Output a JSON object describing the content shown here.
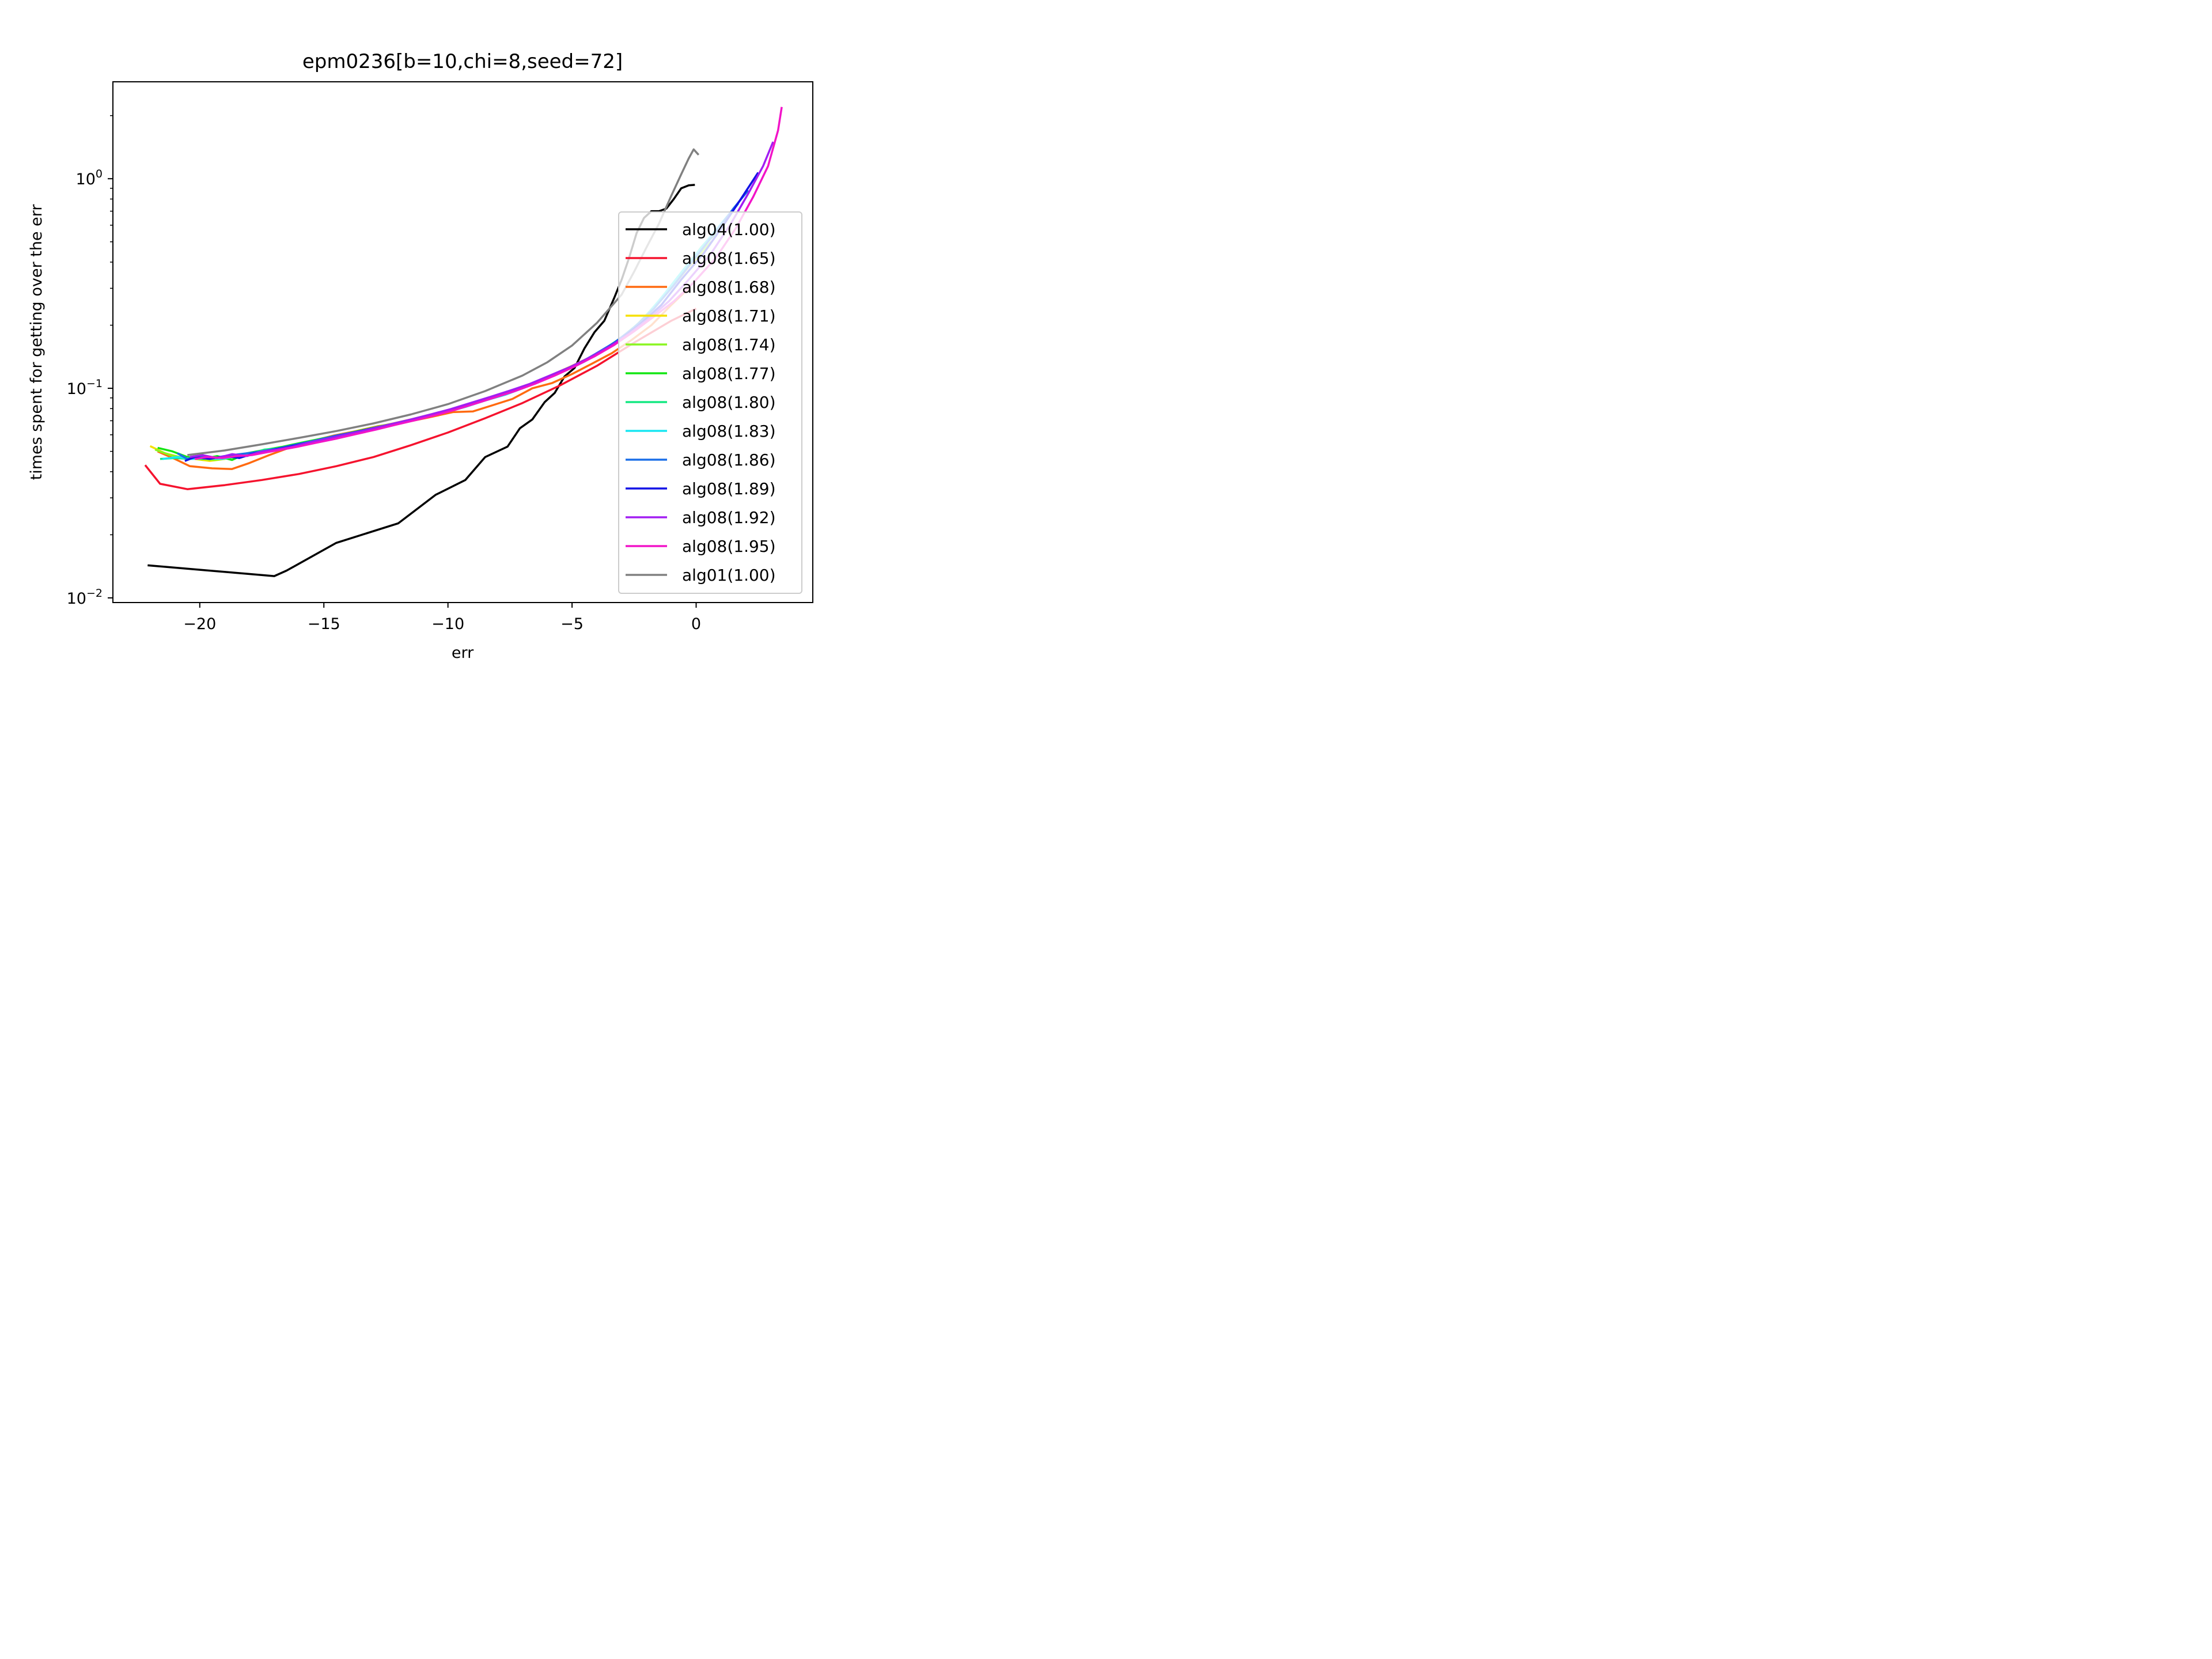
{
  "chart_data": {
    "type": "line",
    "title": "epm0236[b=10,chi=8,seed=72]",
    "xlabel": "err",
    "ylabel": "times spent for getting over the err",
    "xlim": [
      -23.5,
      4.7
    ],
    "ylim": [
      0.0095,
      2.9
    ],
    "yscale": "log",
    "grid": false,
    "legend_position": "right",
    "x_ticks": [
      {
        "value": -20,
        "label": "−20"
      },
      {
        "value": -15,
        "label": "−15"
      },
      {
        "value": -10,
        "label": "−10"
      },
      {
        "value": -5,
        "label": "−5"
      },
      {
        "value": 0,
        "label": "0"
      }
    ],
    "y_ticks": [
      {
        "value": 0.01,
        "base": "10",
        "exp": "−2"
      },
      {
        "value": 0.1,
        "base": "10",
        "exp": "−1"
      },
      {
        "value": 1,
        "base": "10",
        "exp": "0"
      }
    ],
    "series": [
      {
        "name": "alg04(1.00)",
        "color": "#000000",
        "x": [
          -22.1,
          -17,
          -16.5,
          -14.5,
          -12,
          -10.5,
          -9.3,
          -8.5,
          -7.6,
          -7.1,
          -6.6,
          -6.1,
          -5.7,
          -5.3,
          -4.9,
          -4.5,
          -4.1,
          -3.7,
          -3.3,
          -3,
          -2.7,
          -2.4,
          -2.1,
          -1.8,
          -1.5,
          -1.2,
          -0.9,
          -0.6,
          -0.3,
          -0.05
        ],
        "y": [
          0.0143,
          0.0127,
          0.0135,
          0.0183,
          0.0227,
          0.031,
          0.0365,
          0.047,
          0.0527,
          0.0645,
          0.071,
          0.086,
          0.095,
          0.114,
          0.125,
          0.155,
          0.185,
          0.21,
          0.27,
          0.33,
          0.42,
          0.55,
          0.65,
          0.7,
          0.7,
          0.72,
          0.8,
          0.9,
          0.93,
          0.935
        ]
      },
      {
        "name": "alg08(1.65)",
        "color": "#f5132e",
        "x": [
          -22.2,
          -21.6,
          -20.5,
          -19,
          -17.5,
          -16,
          -14.5,
          -13,
          -11.5,
          -10,
          -8.5,
          -7,
          -5.5,
          -4,
          -2.5,
          -1,
          0
        ],
        "y": [
          0.043,
          0.035,
          0.033,
          0.0345,
          0.0365,
          0.039,
          0.0425,
          0.047,
          0.0535,
          0.0615,
          0.072,
          0.085,
          0.103,
          0.128,
          0.165,
          0.21,
          0.24
        ]
      },
      {
        "name": "alg08(1.68)",
        "color": "#ff6a10",
        "x": [
          -21.7,
          -21,
          -20.4,
          -19.5,
          -18.7,
          -18,
          -17.2,
          -16.4,
          -15.5,
          -14.6,
          -13.7,
          -12.8,
          -11.8,
          -10.8,
          -9.8,
          -9,
          -8.2,
          -7.4,
          -6.6,
          -5.8,
          -5,
          -4.2,
          -3.4,
          -2.6,
          -1.8,
          -1,
          -0.3
        ],
        "y": [
          0.05,
          0.046,
          0.0425,
          0.0415,
          0.0412,
          0.044,
          0.048,
          0.052,
          0.056,
          0.0595,
          0.0625,
          0.066,
          0.0685,
          0.0725,
          0.077,
          0.0775,
          0.083,
          0.089,
          0.1,
          0.106,
          0.117,
          0.131,
          0.147,
          0.17,
          0.2,
          0.25,
          0.3
        ]
      },
      {
        "name": "alg08(1.71)",
        "color": "#f5e000",
        "x": [
          -22,
          -21.4,
          -20.8,
          -20.2,
          -19.6,
          -19,
          -18.4,
          -17.8,
          -17,
          -16.2,
          -15.4,
          -14.6,
          -13.8,
          -13,
          -12.2,
          -11.4,
          -10.6,
          -9.8,
          -9,
          -8.2,
          -7.4,
          -6.6,
          -5.8,
          -5,
          -4.2,
          -3.4,
          -2.6,
          -1.8,
          -1,
          -0.3,
          0.4
        ],
        "y": [
          0.053,
          0.049,
          0.047,
          0.046,
          0.045,
          0.046,
          0.048,
          0.0495,
          0.0515,
          0.054,
          0.0565,
          0.059,
          0.062,
          0.065,
          0.068,
          0.0715,
          0.0755,
          0.08,
          0.085,
          0.091,
          0.098,
          0.106,
          0.116,
          0.128,
          0.142,
          0.16,
          0.19,
          0.235,
          0.3,
          0.38,
          0.46
        ]
      },
      {
        "name": "alg08(1.74)",
        "color": "#8af520",
        "x": [
          -21.8,
          -21.2,
          -20.6,
          -20,
          -19.4,
          -18.8,
          -18.2,
          -17.6,
          -16.8,
          -16,
          -15.2,
          -14.4,
          -13.6,
          -12.8,
          -12,
          -11.2,
          -10.4,
          -9.6,
          -8.8,
          -8,
          -7.2,
          -6.4,
          -5.6,
          -4.8,
          -4,
          -3.2,
          -2.4,
          -1.6,
          -0.8,
          0,
          0.6
        ],
        "y": [
          0.051,
          0.048,
          0.0465,
          0.046,
          0.0455,
          0.0465,
          0.048,
          0.05,
          0.052,
          0.0545,
          0.057,
          0.0595,
          0.0625,
          0.0655,
          0.0685,
          0.072,
          0.076,
          0.0805,
          0.0855,
          0.0915,
          0.0985,
          0.107,
          0.117,
          0.129,
          0.145,
          0.165,
          0.2,
          0.25,
          0.33,
          0.42,
          0.5
        ]
      },
      {
        "name": "alg08(1.77)",
        "color": "#12e512",
        "x": [
          -21.7,
          -21.1,
          -20.5,
          -19.9,
          -19.3,
          -18.7,
          -18.1,
          -17.5,
          -16.7,
          -15.9,
          -15.1,
          -14.3,
          -13.5,
          -12.7,
          -11.9,
          -11.1,
          -10.3,
          -9.5,
          -8.7,
          -7.9,
          -7.1,
          -6.3,
          -5.5,
          -4.7,
          -3.9,
          -3.1,
          -2.3,
          -1.5,
          -0.7,
          0.1,
          0.8
        ],
        "y": [
          0.052,
          0.05,
          0.047,
          0.046,
          0.0475,
          0.0455,
          0.049,
          0.0505,
          0.0525,
          0.055,
          0.0575,
          0.06,
          0.063,
          0.066,
          0.069,
          0.0725,
          0.0765,
          0.081,
          0.086,
          0.092,
          0.1,
          0.108,
          0.118,
          0.131,
          0.149,
          0.17,
          0.205,
          0.26,
          0.34,
          0.45,
          0.55
        ]
      },
      {
        "name": "alg08(1.80)",
        "color": "#14e882",
        "x": [
          -21.6,
          -21,
          -20.4,
          -19.8,
          -19.2,
          -18.6,
          -18,
          -17.4,
          -16.6,
          -15.8,
          -15,
          -14.2,
          -13.4,
          -12.6,
          -11.8,
          -11,
          -10.2,
          -9.4,
          -8.6,
          -7.8,
          -7,
          -6.2,
          -5.4,
          -4.6,
          -3.8,
          -3,
          -2.2,
          -1.4,
          -0.6,
          0.2,
          1
        ],
        "y": [
          0.046,
          0.0465,
          0.046,
          0.0475,
          0.0465,
          0.047,
          0.0485,
          0.051,
          0.052,
          0.0545,
          0.057,
          0.06,
          0.0625,
          0.065,
          0.069,
          0.0725,
          0.0765,
          0.081,
          0.087,
          0.0925,
          0.1,
          0.109,
          0.12,
          0.133,
          0.151,
          0.175,
          0.21,
          0.27,
          0.35,
          0.47,
          0.6
        ]
      },
      {
        "name": "alg08(1.83)",
        "color": "#18e6f2",
        "x": [
          -21.5,
          -20.9,
          -20.3,
          -19.7,
          -19.1,
          -18.5,
          -17.9,
          -17.3,
          -16.5,
          -15.7,
          -14.9,
          -14.1,
          -13.3,
          -12.5,
          -11.7,
          -10.9,
          -10.1,
          -9.3,
          -8.5,
          -7.7,
          -6.9,
          -6.1,
          -5.3,
          -4.5,
          -3.7,
          -2.9,
          -2.1,
          -1.3,
          -0.5,
          0.4,
          1.2,
          1.7
        ],
        "y": [
          0.046,
          0.047,
          0.046,
          0.0465,
          0.046,
          0.0475,
          0.0485,
          0.05,
          0.0525,
          0.055,
          0.0575,
          0.0605,
          0.063,
          0.0655,
          0.0695,
          0.073,
          0.077,
          0.0815,
          0.0875,
          0.093,
          0.101,
          0.11,
          0.121,
          0.134,
          0.153,
          0.178,
          0.215,
          0.28,
          0.37,
          0.5,
          0.65,
          0.76
        ]
      },
      {
        "name": "alg08(1.86)",
        "color": "#1a6ee8",
        "x": [
          -20.9,
          -20.5,
          -19.9,
          -19.3,
          -18.7,
          -18.1,
          -17.5,
          -16.9,
          -16.1,
          -15.3,
          -14.5,
          -13.7,
          -12.9,
          -12.1,
          -11.3,
          -10.5,
          -9.7,
          -8.9,
          -8.1,
          -7.3,
          -6.5,
          -5.7,
          -4.9,
          -4.1,
          -3.3,
          -2.5,
          -1.7,
          -0.9,
          -0.1,
          0.8,
          1.5,
          2.1
        ],
        "y": [
          0.049,
          0.046,
          0.0475,
          0.0465,
          0.048,
          0.049,
          0.05,
          0.0515,
          0.054,
          0.0565,
          0.0595,
          0.062,
          0.065,
          0.068,
          0.0715,
          0.0755,
          0.08,
          0.0855,
          0.091,
          0.098,
          0.106,
          0.116,
          0.128,
          0.145,
          0.165,
          0.195,
          0.24,
          0.31,
          0.41,
          0.56,
          0.72,
          0.88
        ]
      },
      {
        "name": "alg08(1.89)",
        "color": "#1212e6",
        "x": [
          -20.6,
          -20.2,
          -19.6,
          -19,
          -18.4,
          -17.8,
          -17.2,
          -16.6,
          -15.8,
          -15,
          -14.2,
          -13.4,
          -12.6,
          -11.8,
          -11,
          -10.2,
          -9.4,
          -8.6,
          -7.8,
          -7,
          -6.2,
          -5.4,
          -4.6,
          -3.8,
          -3,
          -2.2,
          -1.4,
          -0.6,
          0.3,
          1.1,
          1.8,
          2.5
        ],
        "y": [
          0.045,
          0.047,
          0.046,
          0.0475,
          0.0465,
          0.049,
          0.0505,
          0.052,
          0.0545,
          0.057,
          0.06,
          0.063,
          0.066,
          0.0695,
          0.073,
          0.077,
          0.0815,
          0.087,
          0.0935,
          0.1,
          0.11,
          0.12,
          0.133,
          0.15,
          0.173,
          0.205,
          0.25,
          0.33,
          0.44,
          0.6,
          0.8,
          1.07
        ]
      },
      {
        "name": "alg08(1.92)",
        "color": "#a21ef2",
        "x": [
          -20.4,
          -19.9,
          -19.3,
          -18.7,
          -18.1,
          -17.5,
          -16.9,
          -16.3,
          -15.5,
          -14.7,
          -13.9,
          -13.1,
          -12.3,
          -11.5,
          -10.7,
          -9.9,
          -9.1,
          -8.3,
          -7.5,
          -6.7,
          -5.9,
          -5.1,
          -4.3,
          -3.5,
          -2.7,
          -1.9,
          -1.1,
          -0.3,
          0.6,
          1.4,
          2.1,
          2.7,
          3.1
        ],
        "y": [
          0.047,
          0.048,
          0.0465,
          0.0485,
          0.0475,
          0.05,
          0.051,
          0.0525,
          0.0555,
          0.058,
          0.061,
          0.064,
          0.0675,
          0.071,
          0.075,
          0.0795,
          0.085,
          0.091,
          0.0975,
          0.105,
          0.115,
          0.126,
          0.14,
          0.158,
          0.182,
          0.215,
          0.26,
          0.33,
          0.44,
          0.61,
          0.85,
          1.15,
          1.5
        ]
      },
      {
        "name": "alg08(1.95)",
        "color": "#f214c8",
        "x": [
          -20.2,
          -19.7,
          -19.1,
          -18.5,
          -17.9,
          -17.3,
          -16.7,
          -16.1,
          -15.3,
          -14.5,
          -13.7,
          -12.9,
          -12.1,
          -11.3,
          -10.5,
          -9.7,
          -8.9,
          -8.1,
          -7.3,
          -6.5,
          -5.7,
          -4.9,
          -4.1,
          -3.3,
          -2.5,
          -1.7,
          -0.9,
          -0.1,
          0.8,
          1.6,
          2.3,
          2.9,
          3.3,
          3.45
        ],
        "y": [
          0.046,
          0.047,
          0.0465,
          0.0475,
          0.048,
          0.0495,
          0.051,
          0.0525,
          0.055,
          0.0575,
          0.0605,
          0.0635,
          0.067,
          0.0705,
          0.0745,
          0.079,
          0.0845,
          0.0905,
          0.097,
          0.105,
          0.115,
          0.127,
          0.142,
          0.161,
          0.187,
          0.22,
          0.26,
          0.32,
          0.42,
          0.58,
          0.82,
          1.15,
          1.7,
          2.2
        ]
      },
      {
        "name": "alg01(1.00)",
        "color": "#808080",
        "x": [
          -20.5,
          -19,
          -17.5,
          -16,
          -14.5,
          -13,
          -11.5,
          -10,
          -8.5,
          -7,
          -6,
          -5,
          -4,
          -3,
          -2.5,
          -2,
          -1.5,
          -1,
          -0.6,
          -0.3,
          -0.1,
          0.1
        ],
        "y": [
          0.048,
          0.0505,
          0.054,
          0.058,
          0.0625,
          0.068,
          0.075,
          0.084,
          0.097,
          0.115,
          0.133,
          0.16,
          0.205,
          0.28,
          0.36,
          0.47,
          0.61,
          0.83,
          1.05,
          1.25,
          1.38,
          1.3
        ]
      }
    ]
  }
}
